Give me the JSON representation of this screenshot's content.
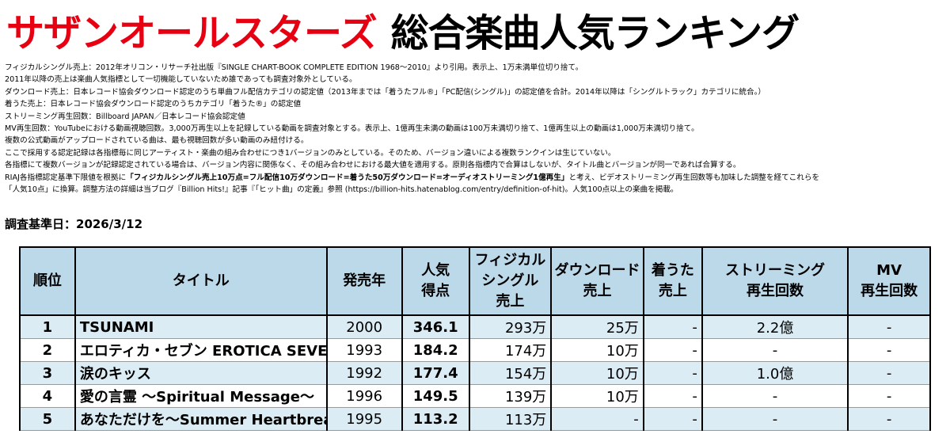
{
  "header": {
    "artist": "サザンオールスターズ",
    "subtitle": "総合楽曲人気ランキング"
  },
  "notes": [
    "フィジカルシングル売上：2012年オリコン・リサーチ社出版『SINGLE CHART-BOOK COMPLETE EDITION 1968～2010』より引用。表示上、1万未満単位切り捨て。",
    "2011年以降の売上は楽曲人気指標として一切機能していないため誰であっても調査対象外としている。",
    "ダウンロード売上：日本レコード協会ダウンロード認定のうち単曲フル配信カテゴリの認定値（2013年までは「着うたフル®」「PC配信(シングル)」の認定値を合計。2014年以降は「シングルトラック」カテゴリに統合。）",
    "着うた売上：日本レコード協会ダウンロード認定のうちカテゴリ「着うた®」の認定値",
    "ストリーミング再生回数：Billboard JAPAN／日本レコード協会認定値",
    "MV再生回数：YouTubeにおける動画視聴回数。3,000万再生以上を記録している動画を調査対象とする。表示上、1億再生未満の動画は100万未満切り捨て、1億再生以上の動画は1,000万未満切り捨て。",
    "複数の公式動画がアップロードされている曲は、最も視聴回数が多い動画のみ紐付ける。",
    "ここで採用する認定記録は各指標毎に同じアーティスト・楽曲の組み合わせにつき1バージョンのみとしている。そのため、バージョン違いによる複数ランクインは生じていない。",
    "各指標にて複数バージョンが記録認定されている場合は、バージョン内容に関係なく、その組み合わせにおける最大値を適用する。原則各指標内で合算はしないが、タイトル曲とバージョンが同一であれば合算する。"
  ],
  "note_riaj": {
    "pre": "RIAJ各指標認定基準下限値を根拠に",
    "bold": "「フィジカルシングル売上10万点=フル配信10万ダウンロード=着うた50万ダウンロード=オーディオストリーミング1億再生」",
    "post": "と考え、ビデオストリーミング再生回数等も加味した調整を経てこれらを"
  },
  "note_last": "「人気10点」に換算。調整方法の詳細は当ブログ『Billion Hits!』記事『「ヒット曲」の定義』参照 (https://billion-hits.hatenablog.com/entry/definition-of-hit)。人気100点以上の楽曲を掲載。",
  "survey_date": "調査基準日：2026/3/12",
  "table": {
    "headers": {
      "rank": "順位",
      "title": "タイトル",
      "year": "発売年",
      "score_l1": "人気",
      "score_l2": "得点",
      "physical_l1": "フィジカル",
      "physical_l2": "シングル",
      "physical_l3": "売上",
      "download_l1": "ダウンロード",
      "download_l2": "売上",
      "chakuuta_l1": "着うた",
      "chakuuta_l2": "売上",
      "streaming_l1": "ストリーミング",
      "streaming_l2": "再生回数",
      "mv_l1": "MV",
      "mv_l2": "再生回数"
    },
    "rows": [
      {
        "rank": "1",
        "title": "TSUNAMI",
        "year": "2000",
        "score": "346.1",
        "physical": "293万",
        "download": "25万",
        "chakuuta": "-",
        "streaming": "2.2億",
        "mv": "-"
      },
      {
        "rank": "2",
        "title": "エロティカ・セブン EROTICA SEVEN",
        "year": "1993",
        "score": "184.2",
        "physical": "174万",
        "download": "10万",
        "chakuuta": "-",
        "streaming": "-",
        "mv": "-"
      },
      {
        "rank": "3",
        "title": "涙のキッス",
        "year": "1992",
        "score": "177.4",
        "physical": "154万",
        "download": "10万",
        "chakuuta": "-",
        "streaming": "1.0億",
        "mv": "-"
      },
      {
        "rank": "4",
        "title": "愛の言霊 ～Spiritual Message～",
        "year": "1996",
        "score": "149.5",
        "physical": "139万",
        "download": "10万",
        "chakuuta": "-",
        "streaming": "-",
        "mv": "-"
      },
      {
        "rank": "5",
        "title": "あなただけを～Summer Heartbreak～",
        "year": "1995",
        "score": "113.2",
        "physical": "113万",
        "download": "-",
        "chakuuta": "-",
        "streaming": "-",
        "mv": "-"
      }
    ]
  }
}
